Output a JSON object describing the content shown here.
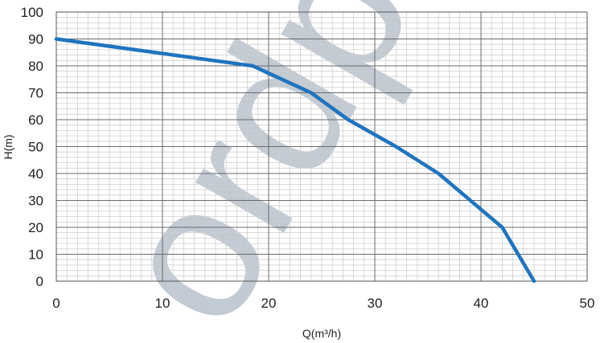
{
  "chart_data": {
    "type": "line",
    "title": "",
    "xlabel": "Q(m³/h)",
    "ylabel": "H(m)",
    "xlim": [
      0,
      50
    ],
    "ylim": [
      0,
      100
    ],
    "x_ticks": [
      "0",
      "10",
      "20",
      "30",
      "40",
      "50"
    ],
    "y_ticks": [
      "0",
      "10",
      "20",
      "30",
      "40",
      "50",
      "60",
      "70",
      "80",
      "90",
      "100"
    ],
    "grid": true,
    "watermark_text": "ordpo",
    "series": [
      {
        "color": "#1f74bf",
        "points": [
          [
            0,
            90
          ],
          [
            18.5,
            80
          ],
          [
            24,
            70
          ],
          [
            27.5,
            60
          ],
          [
            32,
            50
          ],
          [
            36,
            40
          ],
          [
            42,
            20
          ],
          [
            45,
            0
          ]
        ]
      }
    ]
  }
}
